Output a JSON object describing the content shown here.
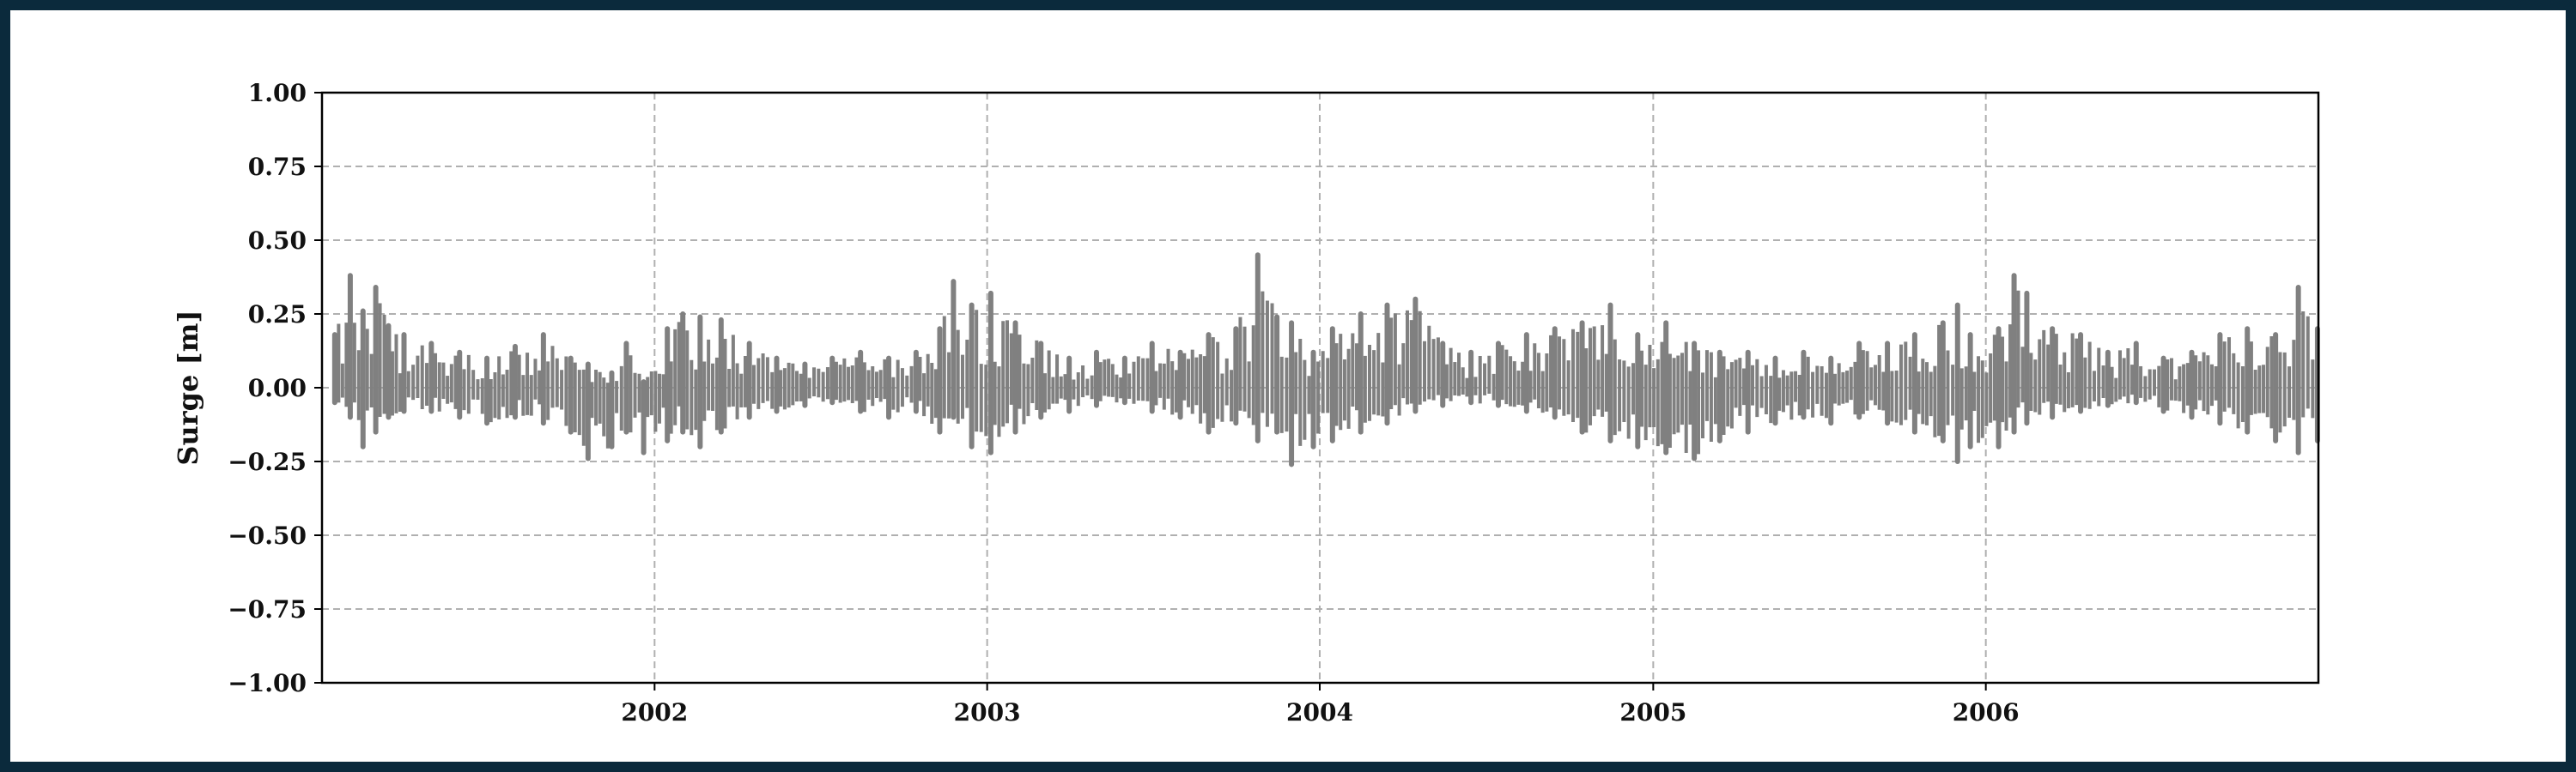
{
  "chart_data": {
    "type": "scatter",
    "title": "",
    "xlabel": "",
    "ylabel": "Surge [m]",
    "xlim": [
      "2001-01-01",
      "2007-01-01"
    ],
    "ylim": [
      -1.0,
      1.0
    ],
    "grid": true,
    "y_ticks": [
      "1.00",
      "0.75",
      "0.50",
      "0.25",
      "0.00",
      "−0.25",
      "−0.50",
      "−0.75",
      "−1.00"
    ],
    "x_ticks": [
      "2002",
      "2003",
      "2004",
      "2005",
      "2006"
    ],
    "series": [
      {
        "color": "#808080",
        "marker": "dot",
        "x": [
          "2001-01-15",
          "2001-02-01",
          "2001-02-15",
          "2001-03-01",
          "2001-03-15",
          "2001-04-01",
          "2001-05-01",
          "2001-06-01",
          "2001-07-01",
          "2001-08-01",
          "2001-09-01",
          "2001-10-01",
          "2001-10-20",
          "2001-11-15",
          "2001-12-01",
          "2001-12-20",
          "2002-01-15",
          "2002-02-01",
          "2002-02-20",
          "2002-03-15",
          "2002-04-15",
          "2002-05-15",
          "2002-06-15",
          "2002-07-15",
          "2002-08-15",
          "2002-09-15",
          "2002-10-15",
          "2002-11-10",
          "2002-11-25",
          "2002-12-15",
          "2003-01-05",
          "2003-02-01",
          "2003-03-01",
          "2003-04-01",
          "2003-05-01",
          "2003-06-01",
          "2003-07-01",
          "2003-08-01",
          "2003-09-01",
          "2003-10-01",
          "2003-10-25",
          "2003-11-15",
          "2003-12-01",
          "2003-12-25",
          "2004-01-15",
          "2004-02-15",
          "2004-03-15",
          "2004-04-15",
          "2004-05-15",
          "2004-06-15",
          "2004-07-15",
          "2004-08-15",
          "2004-09-15",
          "2004-10-15",
          "2004-11-15",
          "2004-12-15",
          "2005-01-15",
          "2005-02-15",
          "2005-03-15",
          "2005-04-15",
          "2005-05-15",
          "2005-06-15",
          "2005-07-15",
          "2005-08-15",
          "2005-09-15",
          "2005-10-15",
          "2005-11-15",
          "2005-12-01",
          "2005-12-15",
          "2006-01-15",
          "2006-02-01",
          "2006-02-15",
          "2006-03-15",
          "2006-04-15",
          "2006-05-15",
          "2006-06-15",
          "2006-07-15",
          "2006-08-15",
          "2006-09-15",
          "2006-10-15",
          "2006-11-15",
          "2006-12-10",
          "2006-12-31"
        ],
        "y_max": [
          0.18,
          0.38,
          0.26,
          0.34,
          0.21,
          0.18,
          0.15,
          0.12,
          0.1,
          0.14,
          0.18,
          0.1,
          0.08,
          0.05,
          0.15,
          0.02,
          0.2,
          0.25,
          0.24,
          0.23,
          0.15,
          0.1,
          0.08,
          0.1,
          0.12,
          0.1,
          0.12,
          0.2,
          0.36,
          0.28,
          0.32,
          0.22,
          0.15,
          0.1,
          0.12,
          0.1,
          0.15,
          0.12,
          0.18,
          0.2,
          0.45,
          0.24,
          0.22,
          0.12,
          0.2,
          0.25,
          0.28,
          0.3,
          0.15,
          0.12,
          0.15,
          0.18,
          0.2,
          0.22,
          0.28,
          0.18,
          0.22,
          0.15,
          0.12,
          0.12,
          0.1,
          0.12,
          0.1,
          0.15,
          0.15,
          0.18,
          0.22,
          0.28,
          0.18,
          0.2,
          0.38,
          0.32,
          0.2,
          0.18,
          0.12,
          0.15,
          0.1,
          0.12,
          0.18,
          0.2,
          0.18,
          0.34,
          0.2
        ],
        "y_min": [
          -0.05,
          -0.1,
          -0.2,
          -0.15,
          -0.1,
          -0.08,
          -0.08,
          -0.1,
          -0.12,
          -0.1,
          -0.12,
          -0.15,
          -0.24,
          -0.2,
          -0.15,
          -0.22,
          -0.18,
          -0.15,
          -0.2,
          -0.15,
          -0.1,
          -0.08,
          -0.06,
          -0.05,
          -0.08,
          -0.1,
          -0.08,
          -0.15,
          -0.1,
          -0.2,
          -0.22,
          -0.15,
          -0.1,
          -0.08,
          -0.06,
          -0.05,
          -0.08,
          -0.1,
          -0.15,
          -0.12,
          -0.18,
          -0.15,
          -0.26,
          -0.2,
          -0.18,
          -0.15,
          -0.12,
          -0.08,
          -0.06,
          -0.05,
          -0.06,
          -0.08,
          -0.1,
          -0.15,
          -0.18,
          -0.2,
          -0.22,
          -0.24,
          -0.18,
          -0.15,
          -0.12,
          -0.1,
          -0.12,
          -0.1,
          -0.12,
          -0.15,
          -0.18,
          -0.25,
          -0.2,
          -0.2,
          -0.15,
          -0.12,
          -0.1,
          -0.08,
          -0.06,
          -0.05,
          -0.08,
          -0.1,
          -0.12,
          -0.15,
          -0.18,
          -0.22,
          -0.18
        ]
      }
    ]
  }
}
